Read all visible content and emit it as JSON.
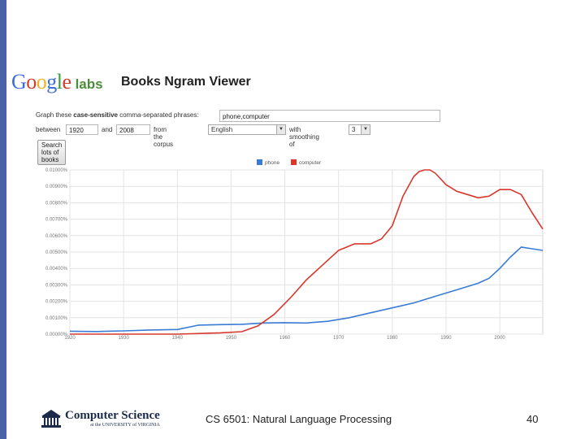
{
  "logo": {
    "google_letters": [
      "G",
      "o",
      "o",
      "g",
      "l",
      "e"
    ],
    "google_colors": [
      "#3b6ed8",
      "#d33b2c",
      "#efb521",
      "#3b6ed8",
      "#3a9a3c",
      "#d33b2c"
    ],
    "labs": "labs"
  },
  "header": {
    "title": "Books Ngram Viewer"
  },
  "form": {
    "graph_prefix": "Graph these",
    "graph_bold": "case-sensitive",
    "graph_suffix": "comma-separated phrases:",
    "phrases_value": "phone,computer",
    "between_label": "between",
    "start_year": "1920",
    "and_label": "and",
    "end_year": "2008",
    "corpus_label": "from the corpus",
    "corpus_value": "English",
    "smoothing_label": "with smoothing of",
    "smoothing_value": "3",
    "search_button": "Search lots of books"
  },
  "chart_data": {
    "type": "line",
    "title": "",
    "xlabel": "",
    "ylabel": "",
    "xlim": [
      1920,
      2008
    ],
    "ylim": [
      0,
      0.01
    ],
    "x_ticks": [
      "1920",
      "1930",
      "1940",
      "1950",
      "1960",
      "1970",
      "1980",
      "1990",
      "2000"
    ],
    "x_tick_values": [
      1920,
      1930,
      1940,
      1950,
      1960,
      1970,
      1980,
      1990,
      2000
    ],
    "y_ticks": [
      "0.00000%",
      "0.00100%",
      "0.00200%",
      "0.00300%",
      "0.00400%",
      "0.00500%",
      "0.00600%",
      "0.00700%",
      "0.00800%",
      "0.00900%",
      "0.01000%"
    ],
    "y_tick_values": [
      0,
      0.001,
      0.002,
      0.003,
      0.004,
      0.005,
      0.006,
      0.007,
      0.008,
      0.009,
      0.01
    ],
    "legend_position": "top-center",
    "series": [
      {
        "name": "phone",
        "color": "#3a7bd5",
        "x": [
          1920,
          1925,
          1930,
          1935,
          1940,
          1944,
          1948,
          1952,
          1956,
          1960,
          1964,
          1968,
          1972,
          1976,
          1980,
          1984,
          1988,
          1992,
          1996,
          1998,
          2000,
          2002,
          2004,
          2006,
          2008
        ],
        "values": [
          0.00018,
          0.00016,
          0.0002,
          0.00025,
          0.00028,
          0.00055,
          0.00058,
          0.0006,
          0.00068,
          0.0007,
          0.00068,
          0.00078,
          0.001,
          0.0013,
          0.0016,
          0.0019,
          0.0023,
          0.0027,
          0.0031,
          0.0034,
          0.004,
          0.0047,
          0.0053,
          0.0052,
          0.0051
        ]
      },
      {
        "name": "computer",
        "color": "#d8382c",
        "x": [
          1920,
          1930,
          1940,
          1948,
          1952,
          1955,
          1958,
          1961,
          1964,
          1967,
          1970,
          1973,
          1976,
          1978,
          1980,
          1982,
          1984,
          1985,
          1986,
          1987,
          1988,
          1990,
          1992,
          1994,
          1996,
          1998,
          2000,
          2002,
          2004,
          2006,
          2008
        ],
        "values": [
          0,
          0,
          0,
          8e-05,
          0.00015,
          0.0005,
          0.0012,
          0.0022,
          0.0033,
          0.0042,
          0.0051,
          0.0055,
          0.0055,
          0.0058,
          0.0066,
          0.0084,
          0.0096,
          0.0099,
          0.01,
          0.01,
          0.0098,
          0.0091,
          0.0087,
          0.0085,
          0.0083,
          0.0084,
          0.0088,
          0.0088,
          0.0085,
          0.0074,
          0.0064
        ]
      }
    ]
  },
  "footer": {
    "dept_title": "Computer Science",
    "dept_sub": "at the UNIVERSITY of VIRGINIA",
    "course": "CS 6501: Natural Language Processing",
    "page_number": "40"
  }
}
